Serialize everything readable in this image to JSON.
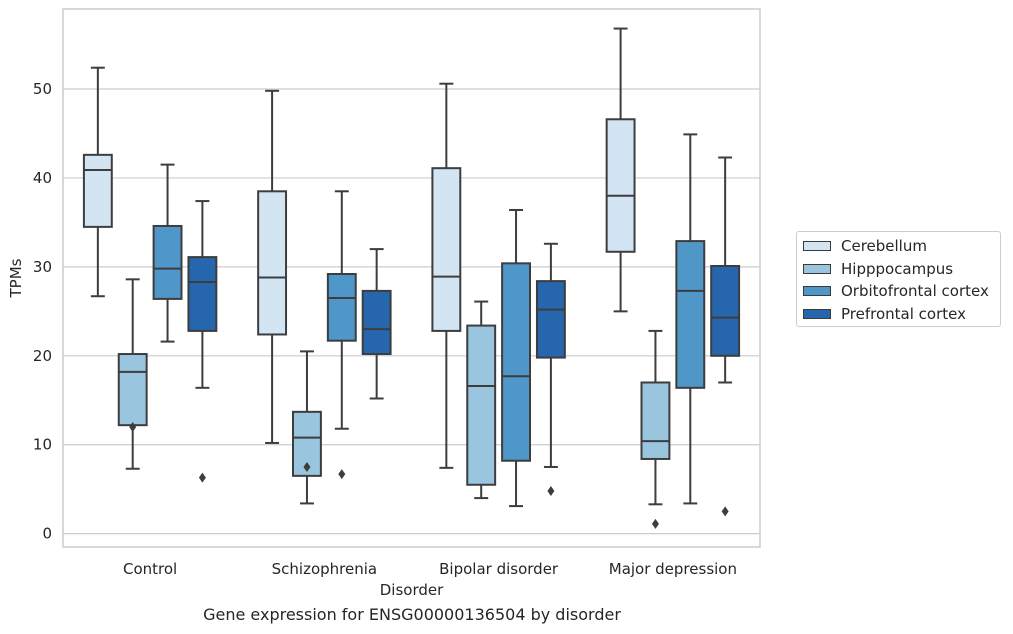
{
  "chart_data": {
    "type": "box",
    "title": "",
    "caption": "Gene expression for ENSG00000136504 by disorder",
    "xlabel": "Disorder",
    "ylabel": "TPMs",
    "ylim": [
      -1.5,
      59
    ],
    "yticks": [
      0,
      10,
      20,
      30,
      40,
      50
    ],
    "grid": "horizontal",
    "legend_position": "right",
    "categories": [
      "Control",
      "Schizophrenia",
      "Bipolar disorder",
      "Major depression"
    ],
    "series": [
      {
        "name": "Cerebellum",
        "color": "#d3e4f3",
        "boxes": [
          {
            "whislo": 26.7,
            "q1": 34.5,
            "med": 40.9,
            "q3": 42.6,
            "whishi": 52.4,
            "fliers": []
          },
          {
            "whislo": 10.2,
            "q1": 22.4,
            "med": 28.8,
            "q3": 38.5,
            "whishi": 49.8,
            "fliers": []
          },
          {
            "whislo": 7.4,
            "q1": 22.8,
            "med": 28.9,
            "q3": 41.1,
            "whishi": 50.6,
            "fliers": []
          },
          {
            "whislo": 25.0,
            "q1": 31.7,
            "med": 38.0,
            "q3": 46.6,
            "whishi": 56.8,
            "fliers": []
          }
        ]
      },
      {
        "name": "Hipppocampus",
        "color": "#9ac5df",
        "boxes": [
          {
            "whislo": 7.3,
            "q1": 12.2,
            "med": 18.2,
            "q3": 20.2,
            "whishi": 28.6,
            "fliers": [
              12.0
            ]
          },
          {
            "whislo": 3.4,
            "q1": 6.5,
            "med": 10.8,
            "q3": 13.7,
            "whishi": 20.5,
            "fliers": [
              7.5
            ]
          },
          {
            "whislo": 4.0,
            "q1": 5.5,
            "med": 16.6,
            "q3": 23.4,
            "whishi": 26.1,
            "fliers": []
          },
          {
            "whislo": 3.3,
            "q1": 8.4,
            "med": 10.4,
            "q3": 17.0,
            "whishi": 22.8,
            "fliers": [
              1.1
            ]
          }
        ]
      },
      {
        "name": "Orbitofrontal cortex",
        "color": "#5097c9",
        "boxes": [
          {
            "whislo": 21.6,
            "q1": 26.4,
            "med": 29.8,
            "q3": 34.6,
            "whishi": 41.5,
            "fliers": []
          },
          {
            "whislo": 11.8,
            "q1": 21.7,
            "med": 26.5,
            "q3": 29.2,
            "whishi": 38.5,
            "fliers": [
              6.7
            ]
          },
          {
            "whislo": 3.1,
            "q1": 8.2,
            "med": 17.7,
            "q3": 30.4,
            "whishi": 36.4,
            "fliers": []
          },
          {
            "whislo": 3.4,
            "q1": 16.4,
            "med": 27.3,
            "q3": 32.9,
            "whishi": 44.9,
            "fliers": []
          }
        ]
      },
      {
        "name": "Prefrontal cortex",
        "color": "#2566ac",
        "boxes": [
          {
            "whislo": 16.4,
            "q1": 22.8,
            "med": 28.3,
            "q3": 31.1,
            "whishi": 37.4,
            "fliers": [
              6.3
            ]
          },
          {
            "whislo": 15.2,
            "q1": 20.2,
            "med": 23.0,
            "q3": 27.3,
            "whishi": 32.0,
            "fliers": []
          },
          {
            "whislo": 7.5,
            "q1": 19.8,
            "med": 25.2,
            "q3": 28.4,
            "whishi": 32.6,
            "fliers": [
              4.8
            ]
          },
          {
            "whislo": 17.0,
            "q1": 20.0,
            "med": 24.3,
            "q3": 30.1,
            "whishi": 42.3,
            "fliers": [
              2.5
            ]
          }
        ]
      }
    ]
  }
}
